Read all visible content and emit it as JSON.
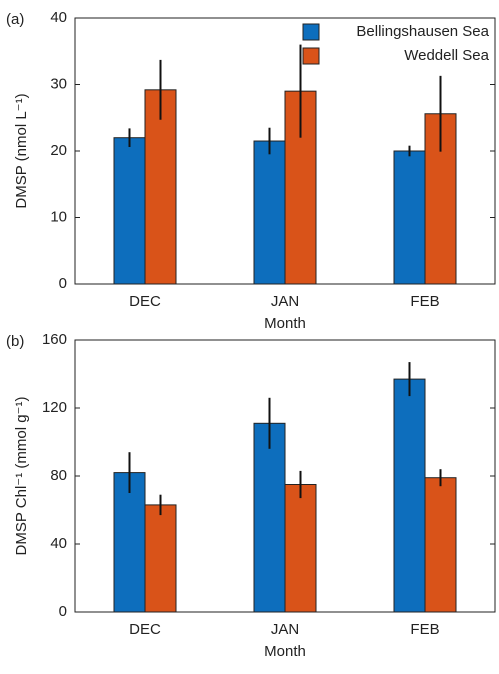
{
  "chart_data": [
    {
      "type": "bar",
      "panel_label": "(a)",
      "ylabel": "DMSP (nmol L⁻¹)",
      "xlabel": "Month",
      "categories": [
        "DEC",
        "JAN",
        "FEB"
      ],
      "series": [
        {
          "name": "Bellingshausen Sea",
          "color": "#0d6ebd",
          "values": [
            22,
            21.5,
            20
          ],
          "errors": [
            1.4,
            2,
            0.8
          ]
        },
        {
          "name": "Weddell Sea",
          "color": "#d95319",
          "values": [
            29.2,
            29,
            25.6
          ],
          "errors": [
            4.5,
            7,
            5.7
          ]
        }
      ],
      "ylim": [
        0,
        40
      ],
      "yticks": [
        0,
        10,
        20,
        30,
        40
      ],
      "legend": "upper right"
    },
    {
      "type": "bar",
      "panel_label": "(b)",
      "ylabel": "DMSP Chl⁻¹ (mmol g⁻¹)",
      "xlabel": "Month",
      "categories": [
        "DEC",
        "JAN",
        "FEB"
      ],
      "series": [
        {
          "color": "#0d6ebd",
          "values": [
            82,
            111,
            137
          ],
          "errors": [
            12,
            15,
            10
          ]
        },
        {
          "color": "#d95319",
          "values": [
            63,
            75,
            79
          ],
          "errors": [
            6,
            8,
            5
          ]
        }
      ],
      "ylim": [
        0,
        160
      ],
      "yticks": [
        0,
        40,
        80,
        120,
        160
      ]
    }
  ]
}
